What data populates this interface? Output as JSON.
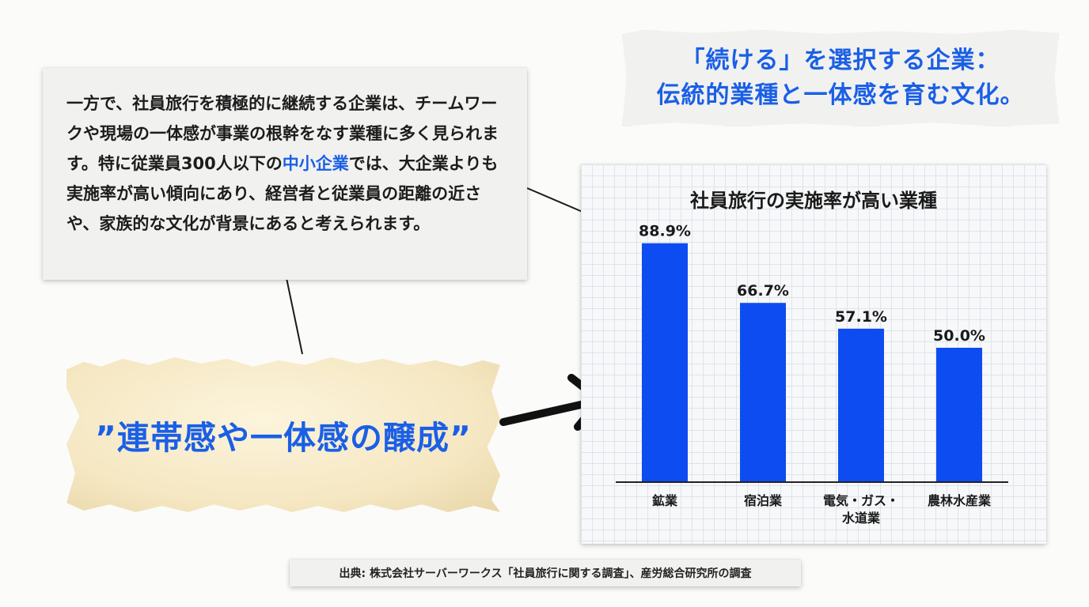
{
  "headline": {
    "line1": "「続ける」を選択する企業：",
    "line2": "伝統的業種と一体感を育む文化。"
  },
  "description": {
    "part1": "一方で、社員旅行を積極的に継続する企業は、チームワークや現場の一体感が事業の根幹をなす業種に多く見られます。特に従業員300人以下の",
    "highlight": "中小企業",
    "part2": "では、大企業よりも実施率が高い傾向にあり、経営者と従業員の距離の近さや、家族的な文化が背景にあると考えられます。"
  },
  "quote": "”連帯感や一体感の醸成”",
  "source": "出典: 株式会社サーバーワークス「社員旅行に関する調査」、産労総合研究所の調査",
  "colors": {
    "accent": "#1a5fe6",
    "bar": "#0d4cf0"
  },
  "chart_data": {
    "type": "bar",
    "title": "社員旅行の実施率が高い業種",
    "categories": [
      [
        "鉱業"
      ],
      [
        "宿泊業"
      ],
      [
        "電気・ガス・",
        "水道業"
      ],
      [
        "農林水産業"
      ]
    ],
    "values": [
      88.9,
      66.7,
      57.1,
      50.0
    ],
    "value_labels": [
      "88.9%",
      "66.7%",
      "57.1%",
      "50.0%"
    ],
    "ylim": [
      0,
      100
    ],
    "grid": true
  }
}
